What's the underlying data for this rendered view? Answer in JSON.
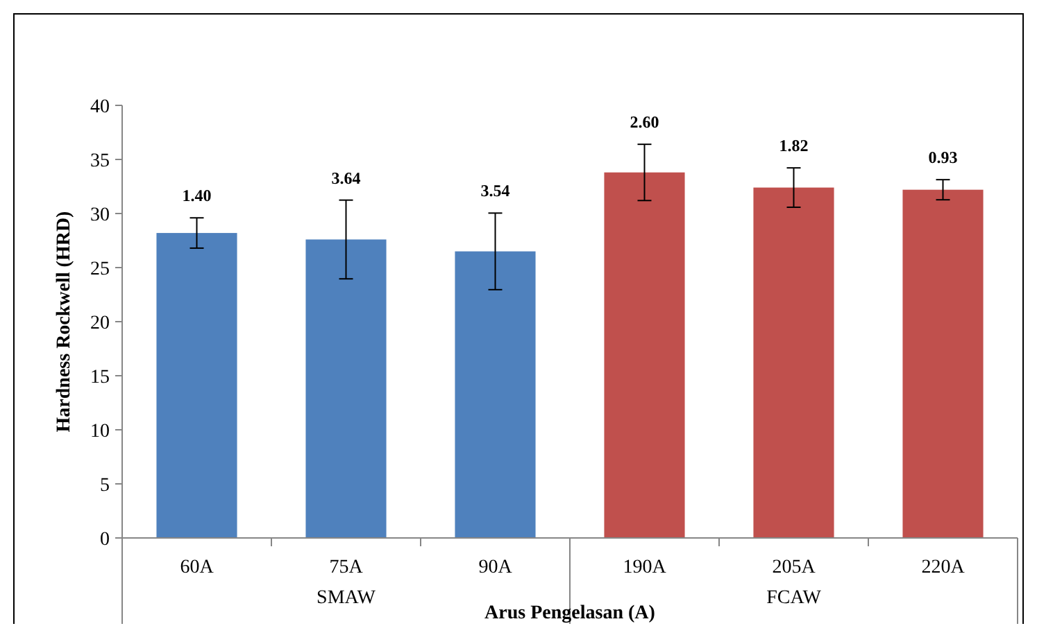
{
  "chart_data": {
    "type": "bar",
    "xlabel": "Arus Pengelasan (A)",
    "ylabel": "Hardness Rockwell (HRD)",
    "categories": [
      "60A",
      "75A",
      "90A",
      "190A",
      "205A",
      "220A"
    ],
    "values": [
      28.2,
      27.6,
      26.5,
      33.8,
      32.4,
      32.2
    ],
    "colors": [
      "#4f81bd",
      "#4f81bd",
      "#4f81bd",
      "#c0504d",
      "#c0504d",
      "#c0504d"
    ],
    "errors": [
      1.4,
      3.64,
      3.54,
      2.6,
      1.82,
      0.93
    ],
    "annotations": [
      "SMAW",
      "FCAW",
      {
        "text": "1.40",
        "x": "60A",
        "y": 29.6
      },
      {
        "text": "3.64",
        "x": "75A",
        "y": 31.24
      },
      {
        "text": "3.54",
        "x": "90A",
        "y": 30.04
      },
      {
        "text": "2.60",
        "x": "190A",
        "y": 36.4
      },
      {
        "text": "1.82",
        "x": "205A",
        "y": 34.22
      },
      {
        "text": "0.93",
        "x": "220A",
        "y": 33.13
      }
    ],
    "ylim": [
      0,
      40
    ],
    "yticks": [
      0,
      5,
      10,
      15,
      20,
      25,
      30,
      35,
      40
    ],
    "grid": false
  }
}
